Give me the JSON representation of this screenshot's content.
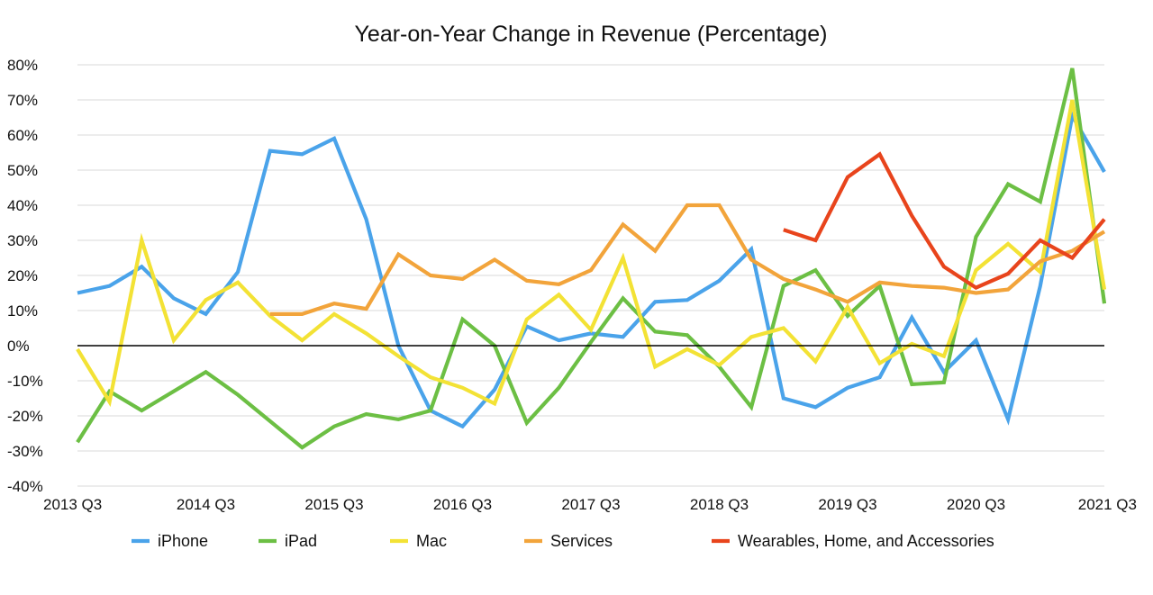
{
  "chart_data": {
    "type": "line",
    "title": "Year-on-Year Change in Revenue (Percentage)",
    "xlabel": "",
    "ylabel": "",
    "ylim": [
      -40,
      80
    ],
    "y_ticks": [
      80,
      70,
      60,
      50,
      40,
      30,
      20,
      10,
      0,
      -10,
      -20,
      -30,
      -40
    ],
    "y_tick_labels": [
      "80%",
      "70%",
      "60%",
      "50%",
      "40%",
      "30%",
      "20%",
      "10%",
      "0%",
      "-10%",
      "-20%",
      "-30%",
      "-40%"
    ],
    "x_tick_labels": [
      "2013 Q3",
      "2014 Q3",
      "2015 Q3",
      "2016 Q3",
      "2017 Q3",
      "2018 Q3",
      "2019 Q3",
      "2020 Q3",
      "2021 Q3"
    ],
    "num_quarters": 33,
    "grid": true,
    "legend_position": "bottom",
    "series": [
      {
        "name": "iPhone",
        "color": "#4aa3ea",
        "start_index": 0,
        "values": [
          15,
          17,
          22.5,
          13.5,
          9,
          21,
          55.5,
          54.5,
          59,
          36,
          0,
          -18.5,
          -23,
          -12.5,
          5.5,
          1.5,
          3.5,
          2.5,
          12.5,
          13,
          18.5,
          27.5,
          -15,
          -17.5,
          -12,
          -9,
          8,
          -7.5,
          1.5,
          -21,
          17,
          65.5,
          49.5
        ]
      },
      {
        "name": "iPad",
        "color": "#6cbf44",
        "start_index": 0,
        "values": [
          -27.5,
          -13,
          -18.5,
          -13,
          -7.5,
          -14,
          -21.5,
          -29,
          -23,
          -19.5,
          -21,
          -18.5,
          7.5,
          0,
          -22,
          -12,
          1,
          13.5,
          4,
          3,
          -6,
          -17.5,
          17,
          21.5,
          8.5,
          17,
          -11,
          -10.5,
          31,
          46,
          41,
          79,
          12
        ]
      },
      {
        "name": "Mac",
        "color": "#f3e235",
        "start_index": 0,
        "values": [
          -1,
          -16,
          30,
          1.5,
          13,
          18,
          8.5,
          1.5,
          9,
          3.5,
          -3,
          -9,
          -12,
          -16.5,
          7.5,
          14.5,
          4.5,
          25,
          -6,
          -1,
          -5.5,
          2.5,
          5,
          -4.5,
          11,
          -5,
          0.5,
          -3,
          21.5,
          29,
          21,
          70,
          16
        ]
      },
      {
        "name": "Services",
        "color": "#f2a43b",
        "start_index": 6,
        "values": [
          9,
          9,
          12,
          10.5,
          26,
          20,
          19,
          24.5,
          18.5,
          17.5,
          21.5,
          34.5,
          27,
          40,
          40,
          24.5,
          19,
          16,
          12.5,
          18,
          17,
          16.5,
          15,
          16,
          24,
          27,
          32.5
        ]
      },
      {
        "name": "Wearables, Home, and Accessories",
        "color": "#e8441c",
        "start_index": 22,
        "values": [
          33,
          30,
          48,
          54.5,
          37,
          22.5,
          16.5,
          20.5,
          30,
          25,
          36
        ]
      }
    ]
  }
}
